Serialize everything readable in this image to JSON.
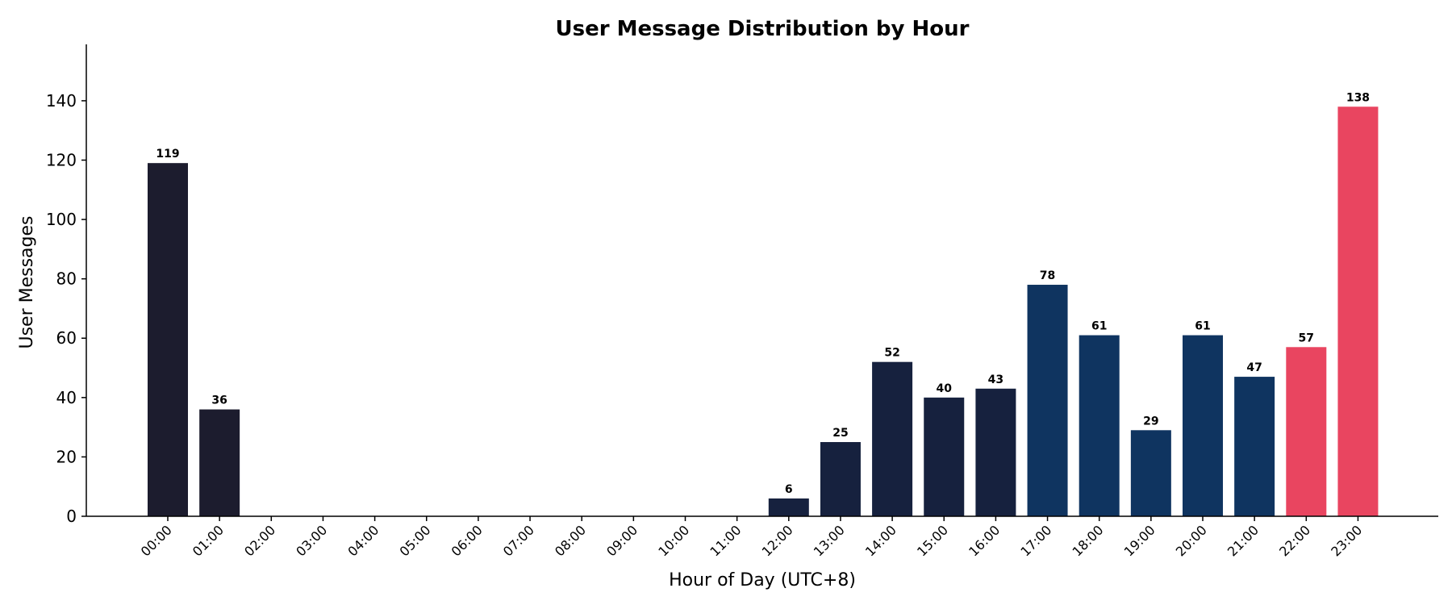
{
  "chart_data": {
    "type": "bar",
    "title": "User Message Distribution by Hour",
    "xlabel": "Hour of Day (UTC+8)",
    "ylabel": "User Messages",
    "ylim": [
      0,
      159
    ],
    "yticks": [
      0,
      20,
      40,
      60,
      80,
      100,
      120,
      140
    ],
    "grid": false,
    "categories": [
      "00:00",
      "01:00",
      "02:00",
      "03:00",
      "04:00",
      "05:00",
      "06:00",
      "07:00",
      "08:00",
      "09:00",
      "10:00",
      "11:00",
      "12:00",
      "13:00",
      "14:00",
      "15:00",
      "16:00",
      "17:00",
      "18:00",
      "19:00",
      "20:00",
      "21:00",
      "22:00",
      "23:00"
    ],
    "values": [
      119,
      36,
      0,
      0,
      0,
      0,
      0,
      0,
      0,
      0,
      0,
      0,
      6,
      25,
      52,
      40,
      43,
      78,
      61,
      29,
      61,
      47,
      57,
      138
    ],
    "bar_colors": [
      "#1c1c2e",
      "#1c1c2e",
      "#1c1c2e",
      "#1c1c2e",
      "#1c1c2e",
      "#1c1c2e",
      "#1c1c2e",
      "#1c1c2e",
      "#1c1c2e",
      "#1c1c2e",
      "#1c1c2e",
      "#1c1c2e",
      "#16213e",
      "#16213e",
      "#16213e",
      "#16213e",
      "#16213e",
      "#0f3460",
      "#0f3460",
      "#0f3460",
      "#0f3460",
      "#0f3460",
      "#e94560",
      "#e94560"
    ]
  }
}
